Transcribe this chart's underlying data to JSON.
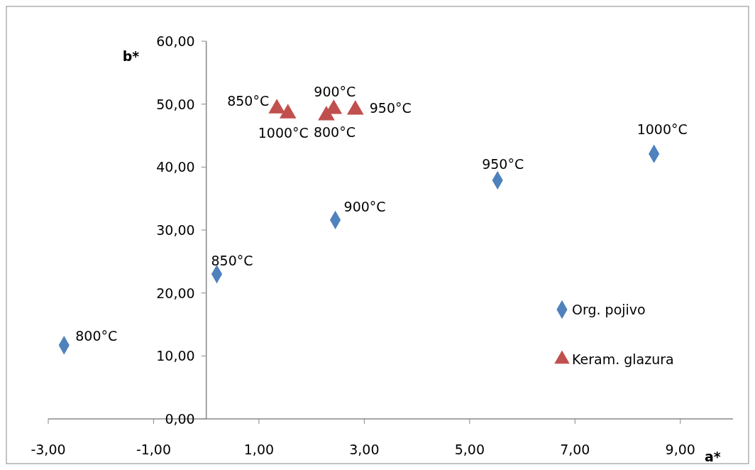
{
  "chart_data": {
    "type": "scatter",
    "xlabel": "a*",
    "ylabel": "b*",
    "xlim": [
      -3,
      10
    ],
    "ylim": [
      0,
      60
    ],
    "xticks": [
      {
        "value": -3,
        "label": "-3,00"
      },
      {
        "value": -1,
        "label": "-1,00"
      },
      {
        "value": 1,
        "label": "1,00"
      },
      {
        "value": 3,
        "label": "3,00"
      },
      {
        "value": 5,
        "label": "5,00"
      },
      {
        "value": 7,
        "label": "7,00"
      },
      {
        "value": 9,
        "label": "9,00"
      }
    ],
    "yticks": [
      {
        "value": 0,
        "label": "0,00"
      },
      {
        "value": 10,
        "label": "10,00"
      },
      {
        "value": 20,
        "label": "20,00"
      },
      {
        "value": 30,
        "label": "30,00"
      },
      {
        "value": 40,
        "label": "40,00"
      },
      {
        "value": 50,
        "label": "50,00"
      },
      {
        "value": 60,
        "label": "60,00"
      }
    ],
    "grid": false,
    "legend": "right",
    "annotations": [
      {
        "text": "800°C",
        "x": -2.7,
        "y": 11.7
      },
      {
        "text": "850°C",
        "x": 0.2,
        "y": 23.0
      },
      {
        "text": "900°C",
        "x": 2.45,
        "y": 31.6
      },
      {
        "text": "950°C",
        "x": 5.53,
        "y": 37.9
      },
      {
        "text": "1000°C",
        "x": 8.5,
        "y": 42.1
      },
      {
        "text": "800°C",
        "x": 2.28,
        "y": 48.2
      },
      {
        "text": "850°C",
        "x": 1.34,
        "y": 49.3
      },
      {
        "text": "900°C",
        "x": 2.42,
        "y": 49.2
      },
      {
        "text": "950°C",
        "x": 2.83,
        "y": 49.1
      },
      {
        "text": "1000°C",
        "x": 1.55,
        "y": 48.5
      }
    ],
    "series": [
      {
        "name": "Org. pojivo",
        "color": "#4f81bd",
        "marker": "diamond",
        "x": [
          -2.7,
          0.2,
          2.45,
          5.53,
          8.5
        ],
        "values": [
          11.7,
          23.0,
          31.6,
          37.9,
          42.1
        ]
      },
      {
        "name": "Keram. glazura",
        "color": "#c0504d",
        "marker": "triangle",
        "x": [
          2.28,
          1.34,
          2.42,
          2.83,
          1.55
        ],
        "values": [
          48.2,
          49.3,
          49.2,
          49.1,
          48.5
        ]
      }
    ]
  }
}
